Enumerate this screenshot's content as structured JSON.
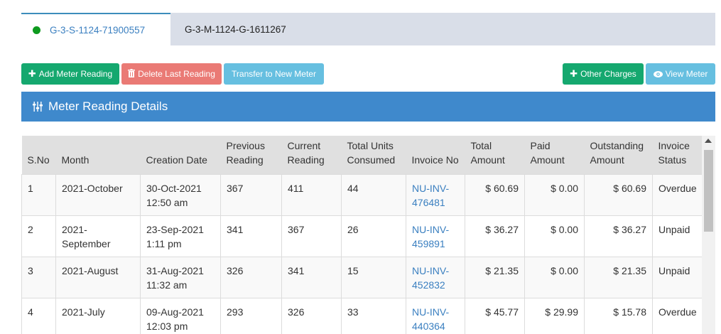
{
  "tabs": [
    {
      "label": "G-3-S-1124-71900557",
      "active": true
    },
    {
      "label": "G-3-M-1124-G-1611267",
      "active": false
    }
  ],
  "toolbar": {
    "add_meter_reading": "Add Meter Reading",
    "delete_last_reading": "Delete Last Reading",
    "transfer_to_new_meter": "Transfer to New Meter",
    "other_charges": "Other Charges",
    "view_meter": "View Meter"
  },
  "panel": {
    "title": "Meter Reading Details"
  },
  "table": {
    "headers": {
      "sno": "S.No",
      "month": "Month",
      "creation_date": "Creation Date",
      "previous_reading": "Previous Reading",
      "current_reading": "Current Reading",
      "total_units_consumed": "Total Units Consumed",
      "invoice_no": "Invoice No",
      "total_amount": "Total Amount",
      "paid_amount": "Paid Amount",
      "outstanding_amount": "Outstanding Amount",
      "invoice_status": "Invoice Status"
    },
    "rows": [
      {
        "sno": "1",
        "month": "2021-October",
        "creation_date": "30-Oct-2021 12:50 am",
        "previous": "367",
        "current": "411",
        "units": "44",
        "invoice": "NU-INV-476481",
        "total": "$ 60.69",
        "paid": "$ 0.00",
        "outstanding": "$ 60.69",
        "status": "Overdue"
      },
      {
        "sno": "2",
        "month": "2021-September",
        "creation_date": "23-Sep-2021 1:11 pm",
        "previous": "341",
        "current": "367",
        "units": "26",
        "invoice": "NU-INV-459891",
        "total": "$ 36.27",
        "paid": "$ 0.00",
        "outstanding": "$ 36.27",
        "status": "Unpaid"
      },
      {
        "sno": "3",
        "month": "2021-August",
        "creation_date": "31-Aug-2021 11:32 am",
        "previous": "326",
        "current": "341",
        "units": "15",
        "invoice": "NU-INV-452832",
        "total": "$ 21.35",
        "paid": "$ 0.00",
        "outstanding": "$ 21.35",
        "status": "Unpaid"
      },
      {
        "sno": "4",
        "month": "2021-July",
        "creation_date": "09-Aug-2021 12:03 pm",
        "previous": "293",
        "current": "326",
        "units": "33",
        "invoice": "NU-INV-440364",
        "total": "$ 45.77",
        "paid": "$ 29.99",
        "outstanding": "$ 15.78",
        "status": "Overdue"
      }
    ]
  },
  "colors": {
    "primary": "#3f89cc",
    "success": "#15a86f",
    "danger": "#ea7a75",
    "info": "#66bfe0",
    "active_dot": "#0e9a1e"
  },
  "icons": {
    "add": "plus-icon",
    "delete": "trash-icon",
    "view": "eye-icon",
    "panel": "sliders-icon"
  }
}
